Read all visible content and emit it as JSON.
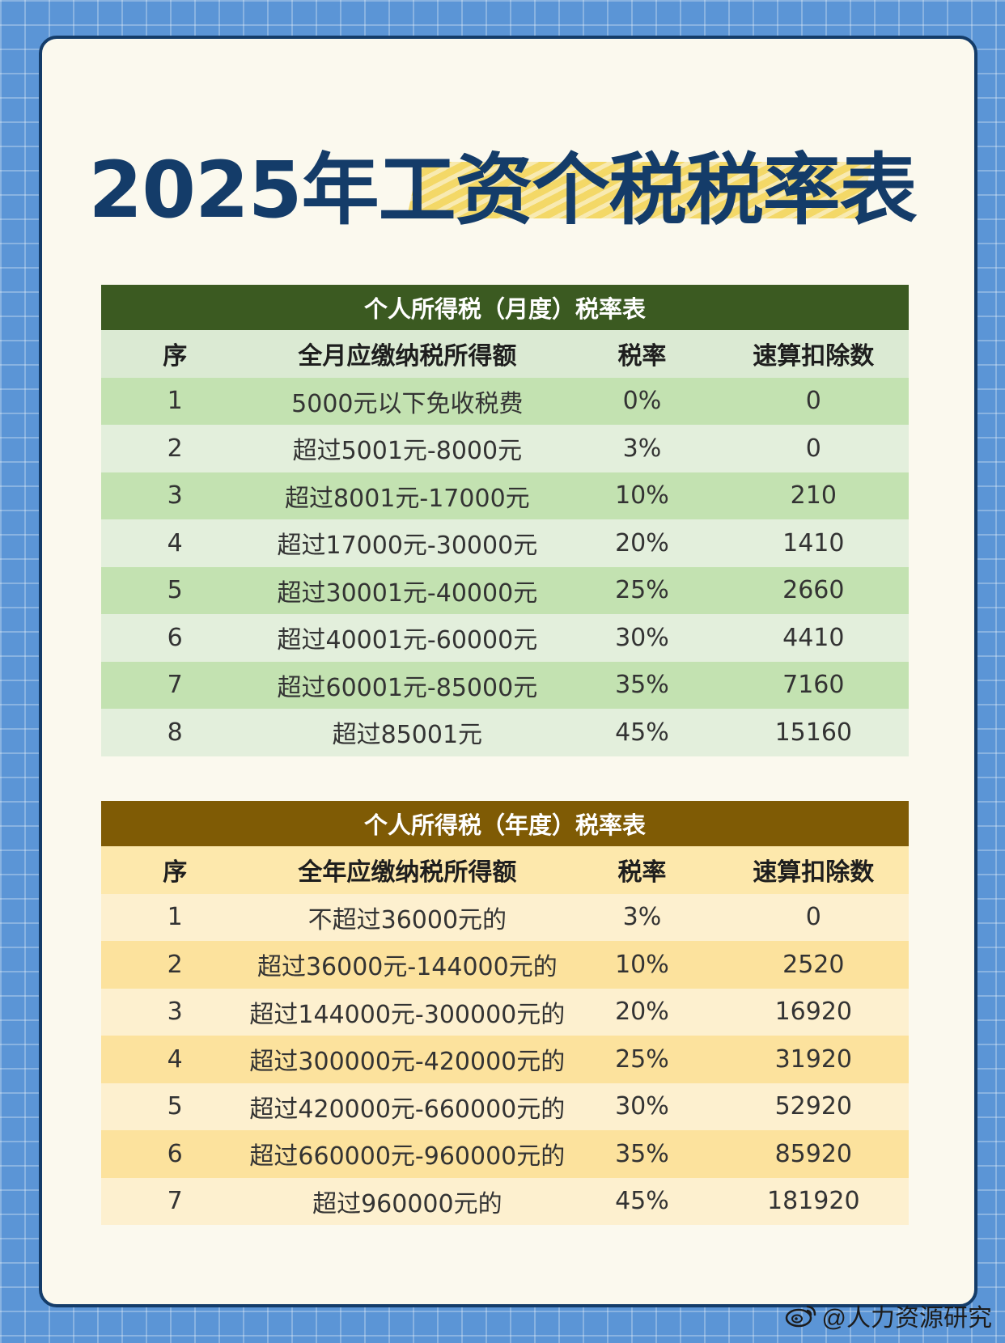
{
  "title": "2025年工资个税税率表",
  "monthly": {
    "caption": "个人所得税（月度）税率表",
    "headers": [
      "序",
      "全月应缴纳税所得额",
      "税率",
      "速算扣除数"
    ],
    "rows": [
      [
        "1",
        "5000元以下免收税费",
        "0%",
        "0"
      ],
      [
        "2",
        "超过5001元-8000元",
        "3%",
        "0"
      ],
      [
        "3",
        "超过8001元-17000元",
        "10%",
        "210"
      ],
      [
        "4",
        "超过17000元-30000元",
        "20%",
        "1410"
      ],
      [
        "5",
        "超过30001元-40000元",
        "25%",
        "2660"
      ],
      [
        "6",
        "超过40001元-60000元",
        "30%",
        "4410"
      ],
      [
        "7",
        "超过60001元-85000元",
        "35%",
        "7160"
      ],
      [
        "8",
        "超过85001元",
        "45%",
        "15160"
      ]
    ]
  },
  "annual": {
    "caption": "个人所得税（年度）税率表",
    "headers": [
      "序",
      "全年应缴纳税所得额",
      "税率",
      "速算扣除数"
    ],
    "rows": [
      [
        "1",
        "不超过36000元的",
        "3%",
        "0"
      ],
      [
        "2",
        "超过36000元-144000元的",
        "10%",
        "2520"
      ],
      [
        "3",
        "超过144000元-300000元的",
        "20%",
        "16920"
      ],
      [
        "4",
        "超过300000元-420000元的",
        "25%",
        "31920"
      ],
      [
        "5",
        "超过420000元-660000元的",
        "30%",
        "52920"
      ],
      [
        "6",
        "超过660000元-960000元的",
        "35%",
        "85920"
      ],
      [
        "7",
        "超过960000元的",
        "45%",
        "181920"
      ]
    ]
  },
  "watermark": "@人力资源研究",
  "icons": {
    "watermark_icon": "weibo-icon"
  },
  "colors": {
    "background": "#5b95d6",
    "title": "#143c69",
    "monthly_caption": "#3b5a21",
    "annual_caption": "#7f5b05"
  }
}
